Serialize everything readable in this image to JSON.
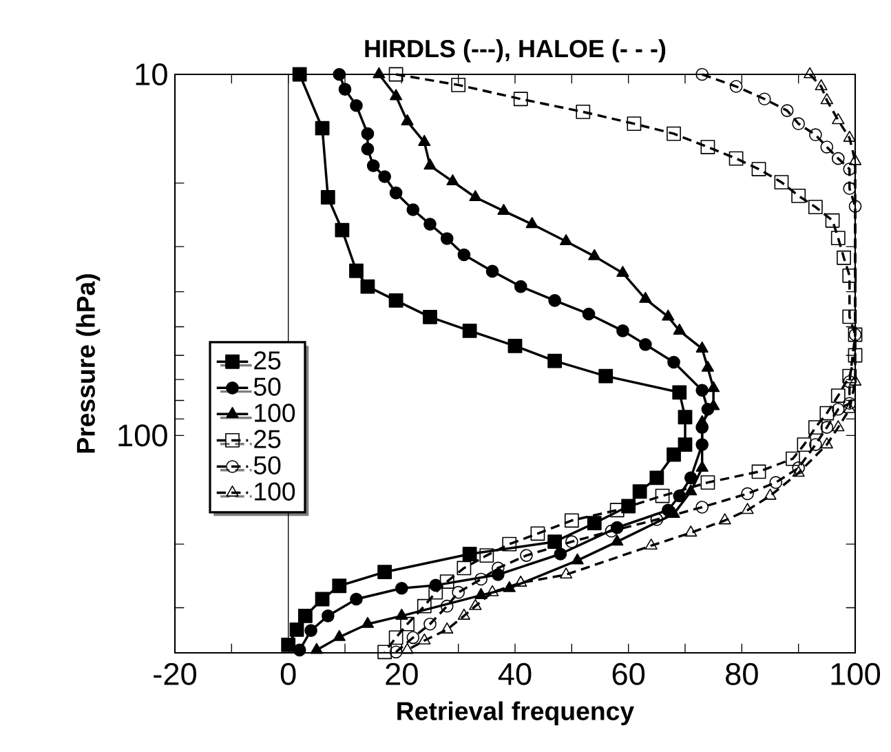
{
  "chart_data": {
    "type": "line",
    "title": "HIRDLS (---), HALOE (- - -)",
    "xlabel": "Retrieval frequency",
    "ylabel": "Pressure (hPa)",
    "xlim": [
      -20,
      100
    ],
    "ylim": [
      400,
      10
    ],
    "log": "y",
    "legend": "left",
    "grid": false,
    "xticks": [
      -20,
      {
        "value": -10,
        "label": null
      },
      0,
      {
        "value": 10,
        "label": null
      },
      20,
      {
        "value": 30,
        "label": null
      },
      40,
      {
        "value": 50,
        "label": null
      },
      60,
      {
        "value": 70,
        "label": null
      },
      80,
      {
        "value": 90,
        "label": null
      },
      100
    ],
    "yticks": [
      10,
      {
        "value": 20,
        "label": null
      },
      {
        "value": 30,
        "label": null
      },
      {
        "value": 40,
        "label": null
      },
      {
        "value": 50,
        "label": null
      },
      {
        "value": 60,
        "label": null
      },
      {
        "value": 70,
        "label": null
      },
      {
        "value": 80,
        "label": null
      },
      {
        "value": 90,
        "label": null
      },
      100,
      {
        "value": 200,
        "label": null
      },
      {
        "value": 300,
        "label": null
      }
    ],
    "ref_lines": [
      {
        "axis": "x",
        "value": 0,
        "color": "#000000"
      }
    ],
    "series": [
      {
        "name": "25",
        "color": "#000000",
        "marker": "square",
        "line_style": "solid",
        "x": [
          2,
          6,
          7,
          9.5,
          12,
          14,
          19,
          25,
          32,
          40,
          47,
          56,
          69,
          70,
          70,
          68,
          65,
          62,
          60,
          54,
          47,
          32,
          17,
          9,
          6,
          3,
          1.5,
          0
        ],
        "values": [
          10,
          14.1,
          21.9,
          27,
          35,
          38.7,
          42.3,
          47,
          51.3,
          56.5,
          62.2,
          68.5,
          76,
          89,
          106,
          113,
          131,
          143,
          157,
          175,
          197,
          213,
          239,
          261,
          284,
          316,
          345,
          380
        ]
      },
      {
        "name": "50",
        "color": "#000000",
        "marker": "circle",
        "line_style": "solid",
        "x": [
          9,
          10,
          12,
          14,
          14,
          15,
          17,
          19,
          22,
          25,
          28,
          31,
          36,
          41,
          47,
          53,
          59,
          63,
          68,
          73,
          74,
          73,
          73,
          71,
          69,
          67,
          58,
          48,
          37,
          26,
          20,
          12,
          7,
          4,
          2
        ],
        "values": [
          10,
          11,
          12.2,
          14.6,
          16.1,
          17.9,
          19.2,
          21.3,
          23.7,
          26,
          28.5,
          31.6,
          35.1,
          38.7,
          42.3,
          46.1,
          51.3,
          56,
          62.7,
          75,
          84.6,
          95,
          106,
          131,
          147,
          161,
          180,
          213,
          243,
          260,
          265,
          284,
          316,
          347,
          393
        ]
      },
      {
        "name": "100",
        "color": "#000000",
        "marker": "triangle",
        "line_style": "solid",
        "x": [
          16,
          19,
          21,
          24,
          25,
          29,
          33,
          38,
          43,
          49,
          54,
          59,
          63,
          67,
          69,
          73,
          74,
          75,
          75,
          73,
          73,
          71,
          68,
          58,
          51,
          39,
          34,
          20,
          14,
          9,
          5
        ],
        "values": [
          10,
          11.5,
          13.5,
          15.4,
          17.9,
          19.8,
          21.9,
          23.9,
          26,
          29,
          31.9,
          35.5,
          41.9,
          46.9,
          51.3,
          57.5,
          65,
          74,
          83,
          92,
          123,
          143,
          165,
          197,
          222,
          265,
          277,
          316,
          333,
          362,
          393
        ]
      },
      {
        "name": "25",
        "color": "#000000",
        "marker": "square",
        "line_style": "dashed",
        "x": [
          19,
          30,
          41,
          52,
          61,
          68,
          74,
          79,
          83,
          87,
          90,
          93,
          96,
          97,
          98,
          99,
          99,
          100,
          100,
          99,
          97,
          95,
          93,
          91,
          89,
          83,
          74,
          66,
          58,
          50,
          44,
          39,
          35,
          31,
          28,
          26,
          24,
          21,
          19,
          17
        ],
        "values": [
          10,
          10.7,
          11.7,
          12.7,
          13.7,
          14.6,
          15.9,
          17.1,
          18.3,
          19.9,
          21.7,
          23.3,
          25.4,
          28.4,
          32.2,
          36.1,
          46.9,
          52.6,
          60,
          68.5,
          77.6,
          86.8,
          95,
          106,
          116,
          126,
          135,
          147,
          161,
          172,
          187,
          200,
          215,
          233,
          254,
          272,
          297,
          333,
          363,
          398
        ]
      },
      {
        "name": "50",
        "color": "#000000",
        "marker": "circle",
        "line_style": "dashed",
        "x": [
          73,
          79,
          84,
          88,
          90,
          93,
          95,
          97,
          99,
          99,
          100,
          100,
          99,
          99,
          97,
          95,
          93,
          90,
          86,
          81,
          73,
          65,
          57,
          50,
          42,
          37,
          34,
          30,
          28,
          25,
          22,
          19
        ],
        "values": [
          10,
          10.8,
          11.7,
          12.6,
          13.7,
          14.7,
          15.9,
          17.1,
          18.3,
          20.7,
          23.2,
          52.6,
          71,
          81.5,
          84.6,
          95,
          106,
          123,
          135,
          145,
          158,
          171,
          184,
          197,
          215,
          233,
          250,
          272,
          297,
          333,
          363,
          398
        ]
      },
      {
        "name": "100",
        "color": "#000000",
        "marker": "triangle",
        "line_style": "dashed",
        "x": [
          92,
          94,
          95,
          97,
          99,
          100,
          100,
          99,
          97,
          95,
          90,
          85,
          81,
          77,
          71,
          64,
          49,
          41,
          36,
          33,
          31,
          28,
          24,
          21
        ],
        "values": [
          10,
          10.8,
          11.8,
          13.4,
          15,
          17.4,
          71,
          84.6,
          95,
          106,
          127,
          147,
          161,
          172,
          186,
          202,
          243,
          256,
          272,
          297,
          316,
          345,
          370,
          393
        ]
      }
    ]
  }
}
